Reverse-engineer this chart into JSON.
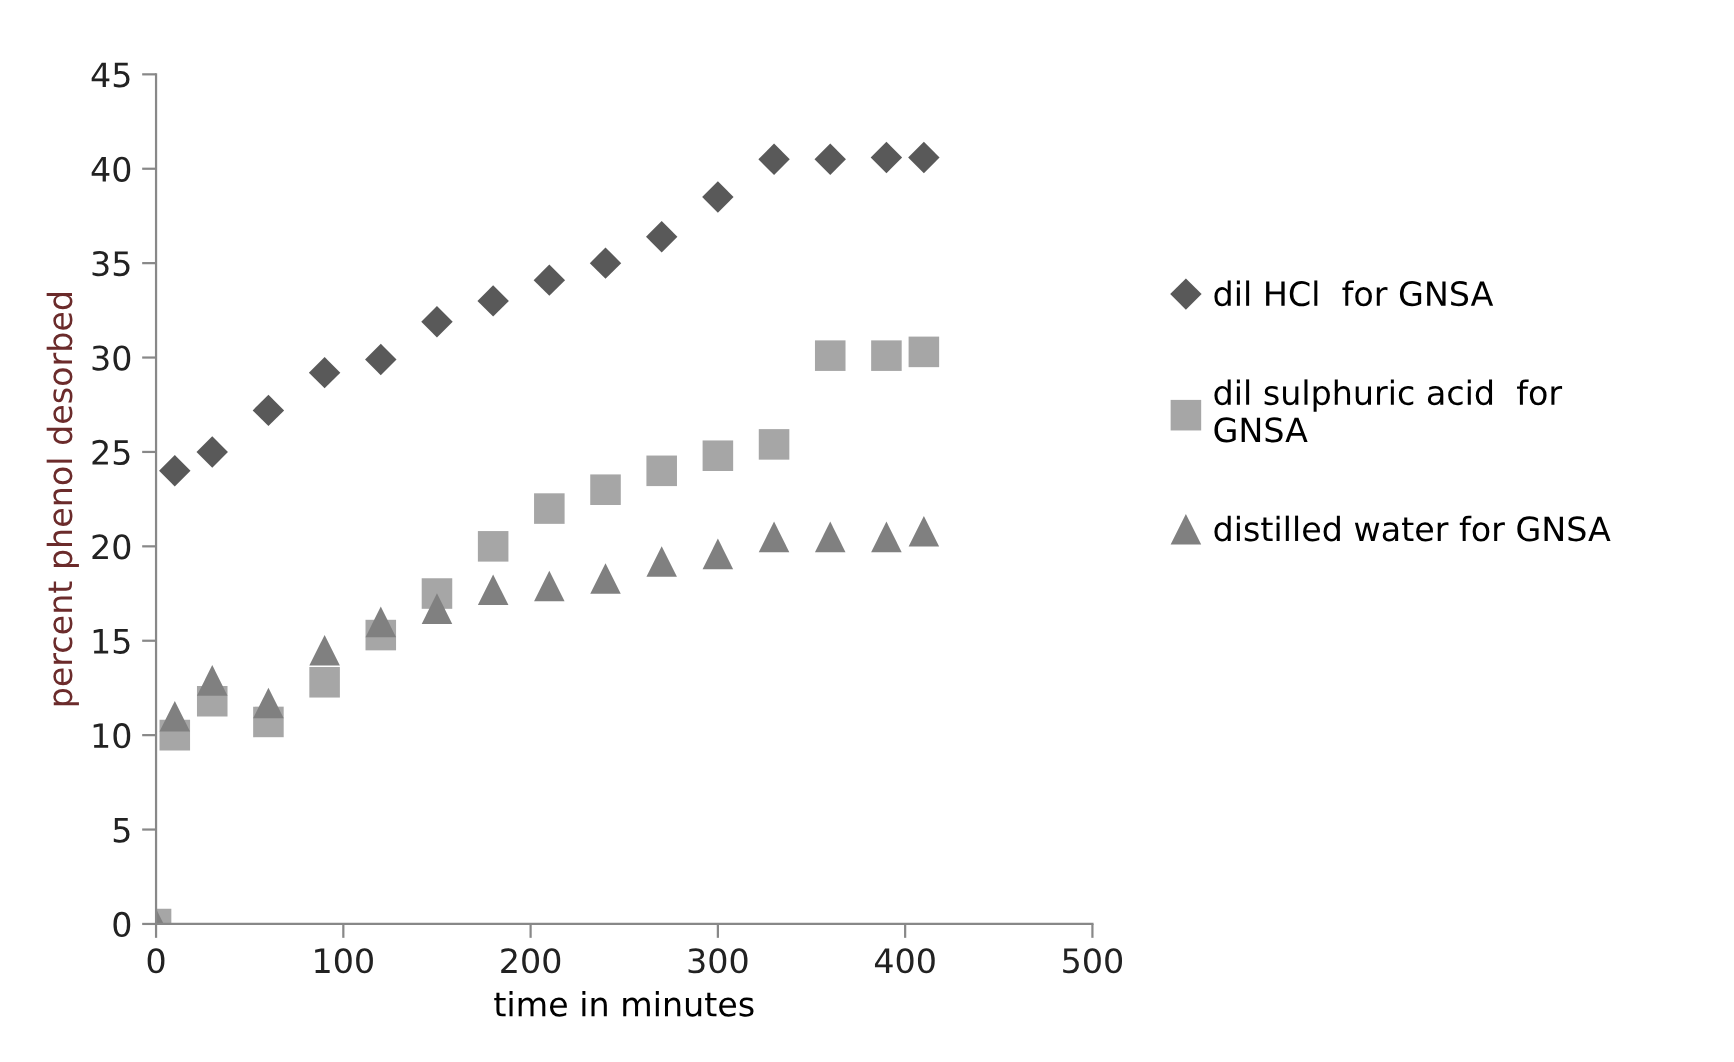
{
  "chart_data": {
    "type": "scatter",
    "xlabel": "time in minutes",
    "ylabel": "percent phenol desorbed",
    "xlim": [
      0,
      500
    ],
    "xticks": [
      0,
      100,
      200,
      300,
      400,
      500
    ],
    "ylim": [
      0,
      45
    ],
    "yticks": [
      0,
      5,
      10,
      15,
      20,
      25,
      30,
      35,
      40,
      45
    ],
    "grid": false,
    "legend": "right",
    "series": [
      {
        "name": "dil HCl  for GNSA",
        "color": "#595959",
        "marker": "diamond",
        "x": [
          10,
          30,
          60,
          90,
          120,
          150,
          180,
          210,
          240,
          270,
          300,
          330,
          360,
          390,
          410
        ],
        "values": [
          24,
          25,
          27.2,
          29.2,
          29.9,
          31.9,
          33,
          34.1,
          35,
          36.4,
          38.5,
          40.5,
          40.5,
          40.6,
          40.6
        ]
      },
      {
        "name": "dil sulphuric acid  for\nGNSA",
        "color": "#a6a6a6",
        "marker": "square",
        "x": [
          0,
          10,
          30,
          60,
          90,
          120,
          150,
          180,
          210,
          240,
          270,
          300,
          330,
          360,
          390,
          410
        ],
        "values": [
          0,
          10,
          11.8,
          10.7,
          12.8,
          15.3,
          17.5,
          20,
          22,
          23,
          24,
          24.8,
          25.4,
          30.1,
          30.1,
          30.3
        ]
      },
      {
        "name": "distilled water for GNSA",
        "color": "#808080",
        "marker": "triangle",
        "x": [
          0,
          10,
          30,
          60,
          90,
          120,
          150,
          180,
          210,
          240,
          270,
          300,
          330,
          360,
          390,
          410
        ],
        "values": [
          0,
          11,
          12.9,
          11.7,
          14.5,
          16,
          16.7,
          17.7,
          17.9,
          18.3,
          19.2,
          19.6,
          20.5,
          20.5,
          20.5,
          20.8
        ]
      }
    ]
  }
}
